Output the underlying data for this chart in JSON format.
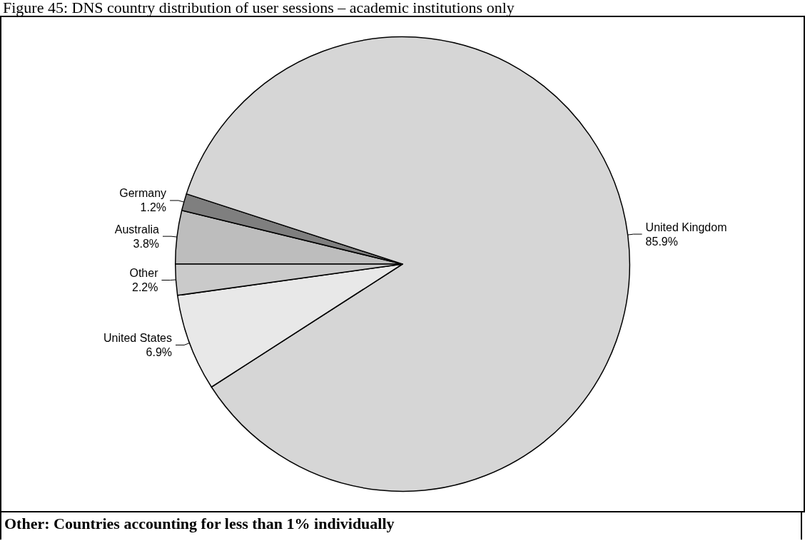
{
  "chart_data": {
    "type": "pie",
    "title": "Figure 45: DNS country distribution of user sessions – academic institutions only",
    "categories": [
      "Australia",
      "Germany",
      "United Kingdom",
      "United States",
      "Other"
    ],
    "values": [
      3.8,
      1.2,
      85.9,
      6.9,
      2.2
    ],
    "colors": [
      "#bdbdbd",
      "#7f7f7f",
      "#d6d6d6",
      "#e8e8e8",
      "#cacaca"
    ],
    "value_labels": [
      "3.8%",
      "1.2%",
      "85.9%",
      "6.9%",
      "2.2%"
    ],
    "legend": false,
    "annotations": [
      "Other: Countries accounting for less than 1% individually"
    ]
  }
}
